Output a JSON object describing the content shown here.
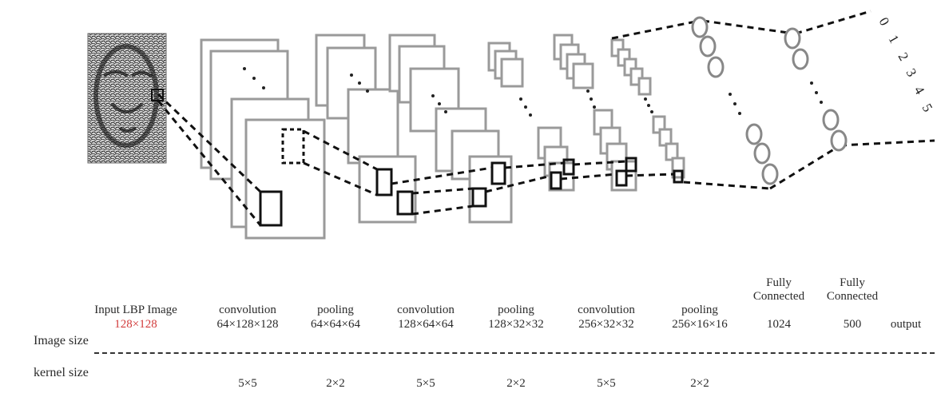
{
  "row_headers": {
    "image_size": "Image size",
    "kernel_size": "kernel size"
  },
  "columns": [
    {
      "name": "Input LBP Image",
      "size": "128×128",
      "kernel": ""
    },
    {
      "name": "convolution",
      "size": "64×128×128",
      "kernel": "5×5"
    },
    {
      "name": "pooling",
      "size": "64×64×64",
      "kernel": "2×2"
    },
    {
      "name": "convolution",
      "size": "128×64×64",
      "kernel": "5×5"
    },
    {
      "name": "pooling",
      "size": "128×32×32",
      "kernel": "2×2"
    },
    {
      "name": "convolution",
      "size": "256×32×32",
      "kernel": "5×5"
    },
    {
      "name": "pooling",
      "size": "256×16×16",
      "kernel": "2×2"
    },
    {
      "name": "Fully\nConnected",
      "size": "1024",
      "kernel": ""
    },
    {
      "name": "Fully\nConnected",
      "size": "500",
      "kernel": ""
    },
    {
      "name": "",
      "size": "output",
      "kernel": ""
    }
  ],
  "output_labels": [
    "0",
    "1",
    "2",
    "3",
    "4",
    "5"
  ],
  "colors": {
    "highlight": "#d23b3b",
    "frame": "#9a9a9a",
    "stroke": "#222222"
  }
}
